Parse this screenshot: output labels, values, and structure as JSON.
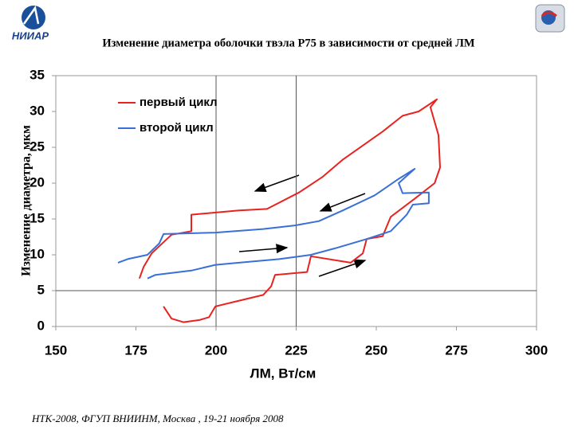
{
  "header": {
    "logo_text": "НИИАР"
  },
  "chart_data": {
    "type": "line",
    "title": "Изменение диаметра оболочки твэла Р75 в зависимости от средней ЛМ",
    "x_label": "ЛМ, Вт/см",
    "y_label": "Изменение диаметра, мкм",
    "xlim": [
      150,
      300
    ],
    "xticks": [
      150,
      175,
      200,
      225,
      250,
      275,
      300
    ],
    "ylim": [
      0,
      35
    ],
    "yticks": [
      0,
      5,
      10,
      15,
      20,
      25,
      30,
      35
    ],
    "reference_lines": {
      "x": [
        200,
        225
      ],
      "y": [
        5
      ]
    },
    "legend": "top-left",
    "series": [
      {
        "name": "первый цикл",
        "color": "#e8231f",
        "x": [
          183.6,
          186.1,
          189.8,
          194.8,
          197.8,
          199.8,
          207.2,
          214.7,
          217.2,
          218.4,
          228.4,
          229.6,
          242.0,
          245.8,
          247.0,
          252.0,
          254.5,
          261.9,
          268.2,
          269.9,
          269.4,
          266.9,
          268.9,
          263.2,
          258.2,
          252.0,
          239.6,
          233.3,
          225.9,
          215.9,
          207.2,
          192.3,
          192.3,
          186.1,
          179.9,
          177.4,
          176.1
        ],
        "values": [
          2.8,
          1.1,
          0.6,
          0.9,
          1.3,
          2.8,
          3.6,
          4.4,
          5.6,
          7.2,
          7.6,
          9.8,
          8.9,
          10.2,
          12.2,
          12.6,
          15.3,
          17.8,
          20.0,
          22.2,
          26.7,
          30.6,
          31.7,
          30.0,
          29.4,
          27.2,
          23.3,
          20.9,
          18.7,
          16.4,
          16.2,
          15.6,
          13.3,
          12.8,
          10.2,
          8.3,
          6.7
        ]
      },
      {
        "name": "второй цикл",
        "color": "#3a6fd8",
        "x": [
          178.6,
          181.1,
          192.3,
          199.8,
          207.2,
          219.7,
          229.6,
          237.1,
          247.0,
          254.5,
          259.5,
          261.4,
          266.4,
          266.4,
          258.2,
          257.0,
          262.0,
          257.0,
          249.5,
          239.6,
          232.1,
          224.6,
          214.7,
          199.8,
          183.6,
          182.3,
          178.6,
          172.4,
          169.4
        ],
        "values": [
          6.7,
          7.2,
          7.8,
          8.6,
          8.9,
          9.4,
          10.0,
          10.9,
          12.2,
          13.3,
          15.6,
          17.0,
          17.2,
          18.7,
          18.6,
          20.0,
          22.0,
          20.6,
          18.3,
          16.2,
          14.7,
          14.1,
          13.6,
          13.1,
          12.9,
          11.6,
          10.0,
          9.4,
          8.9
        ]
      }
    ]
  },
  "footer": "НТК-2008, ФГУП ВНИИНМ, Москва , 19-21 ноября 2008"
}
